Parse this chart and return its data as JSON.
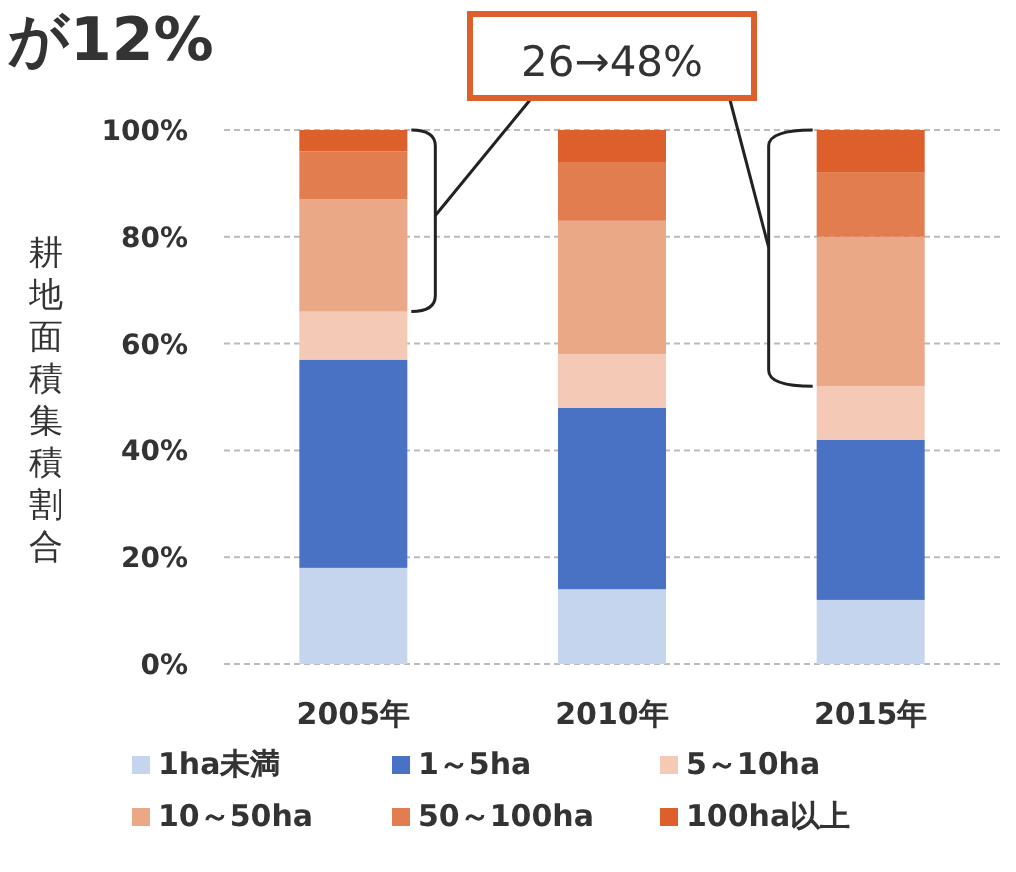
{
  "chart_data": {
    "type": "bar",
    "stacked": true,
    "title": "が12%",
    "ylabel": "耕地面積集積割合",
    "categories": [
      "2005年",
      "2010年",
      "2015年"
    ],
    "series": [
      {
        "name": "1ha未満",
        "color": "#c5d5ee",
        "values": [
          18,
          14,
          12
        ]
      },
      {
        "name": "1～5ha",
        "color": "#4a72c4",
        "values": [
          39,
          34,
          30
        ]
      },
      {
        "name": "5～10ha",
        "color": "#f4c9b5",
        "values": [
          9,
          10,
          10
        ]
      },
      {
        "name": "10～50ha",
        "color": "#eba886",
        "values": [
          21,
          25,
          28
        ]
      },
      {
        "name": "50～100ha",
        "color": "#e27d4f",
        "values": [
          9,
          11,
          12
        ]
      },
      {
        "name": "100ha以上",
        "color": "#dc5f2c",
        "values": [
          4,
          6,
          8
        ]
      }
    ],
    "ylim": [
      0,
      100
    ],
    "yticks": [
      {
        "value": 0,
        "label": "0%"
      },
      {
        "value": 20,
        "label": "20%"
      },
      {
        "value": 40,
        "label": "40%"
      },
      {
        "value": 60,
        "label": "60%"
      },
      {
        "value": 80,
        "label": "80%"
      },
      {
        "value": 100,
        "label": "100%"
      }
    ],
    "grid": "y",
    "legend": "bottom",
    "annotations": [
      "26→48%"
    ]
  }
}
